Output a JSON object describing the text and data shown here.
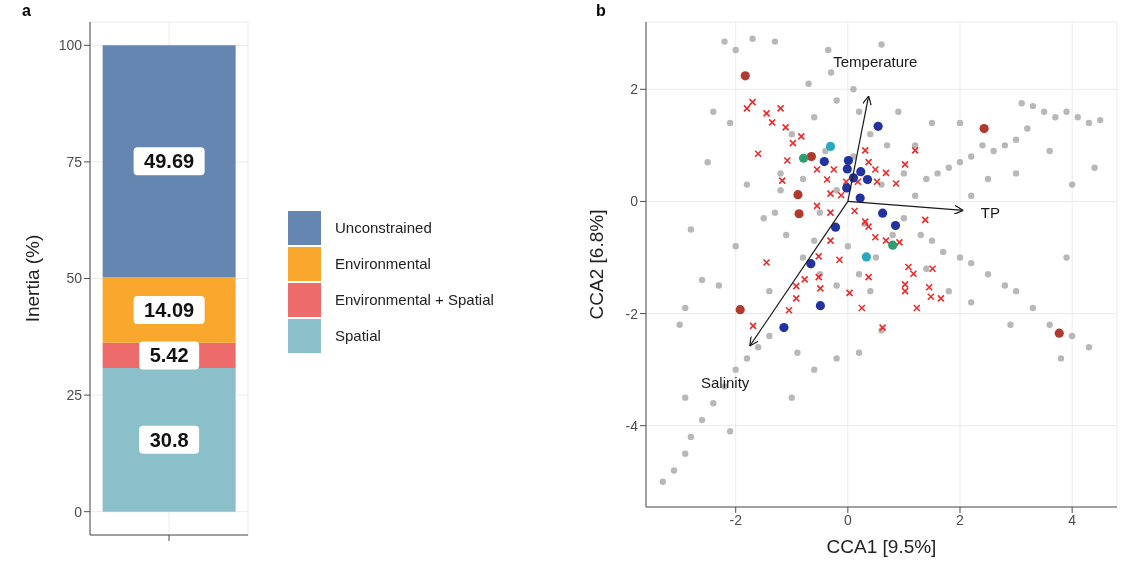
{
  "chart_data": [
    {
      "type": "bar",
      "title": "a",
      "ylabel": "Inertia (%)",
      "categories": [
        null
      ],
      "stacked": true,
      "ylim": [
        -5,
        105
      ],
      "yticks": [
        0,
        25,
        50,
        75,
        100
      ],
      "grid": true,
      "legend": "right",
      "data_labels": true,
      "series": [
        {
          "name": "Spatial",
          "color": "#8bbfca",
          "values": [
            30.8
          ]
        },
        {
          "name": "Environmental + Spatial",
          "color": "#ee6b6b",
          "values": [
            5.42
          ]
        },
        {
          "name": "Environmental",
          "color": "#f9a72d",
          "values": [
            14.09
          ]
        },
        {
          "name": "Unconstrained",
          "color": "#6486b1",
          "values": [
            49.69
          ]
        }
      ]
    },
    {
      "type": "scatter",
      "title": "b",
      "xlabel": "CCA1   [9.5%]",
      "ylabel": "CCA2   [6.8%]",
      "xlim": [
        -3.6,
        4.8
      ],
      "ylim": [
        -5.45,
        3.2
      ],
      "xticks": [
        -2,
        0,
        2,
        4
      ],
      "yticks": [
        -4,
        -2,
        0,
        2
      ],
      "grid": true,
      "marker": "circle",
      "annotations": [
        "Temperature",
        "TP",
        "Salinity"
      ],
      "series": [
        {
          "color": "#b8b8b8",
          "x": [
            4.5,
            4.3,
            4.1,
            3.9,
            3.7,
            3.5,
            3.3,
            3.1,
            3.2,
            3.0,
            2.8,
            2.6,
            2.4,
            2.2,
            2.0,
            1.8,
            1.6,
            1.4,
            2.5,
            3.0,
            3.6,
            4.0,
            2.0,
            1.5,
            2.2,
            4.4,
            4.3,
            4.0,
            3.6,
            3.3,
            3.0,
            2.8,
            2.5,
            2.2,
            2.0,
            1.7,
            1.5,
            1.3,
            3.8,
            2.2,
            1.8,
            3.9,
            2.9,
            -3.3,
            -3.1,
            -2.9,
            -2.8,
            -2.6,
            -2.4,
            -2.2,
            -2.0,
            -1.8,
            -1.6,
            -1.4,
            -2.1,
            -1.0,
            -0.6,
            -0.2,
            0.2,
            0.6,
            -0.9,
            -2.9,
            -3.0,
            -2.2,
            -2.0,
            -1.7,
            -1.3,
            -0.35,
            0.6,
            -0.3,
            0.1,
            -2.4,
            -2.1,
            -2.5,
            -2.8,
            -2.6,
            -2.9,
            -2.3,
            -2.0,
            -1.8,
            -1.5,
            -1.2,
            -1.0,
            -0.6,
            -0.2,
            0.2,
            0.4,
            0.7,
            1.0,
            1.2,
            1.0,
            0.8,
            0.5,
            0.2,
            -0.2,
            -0.5,
            -0.8,
            -1.1,
            -1.3,
            -1.2,
            -0.8,
            -0.5,
            -0.2,
            0.3,
            0.6,
            -0.4,
            0.1,
            -0.6,
            0.0,
            0.4,
            -1.4,
            1.4,
            1.2,
            0.9,
            -0.7
          ],
          "values": [
            1.45,
            1.4,
            1.5,
            1.6,
            1.5,
            1.6,
            1.7,
            1.75,
            1.3,
            1.1,
            1.0,
            0.9,
            1.0,
            0.8,
            0.7,
            0.6,
            0.5,
            0.4,
            0.4,
            0.5,
            0.9,
            0.3,
            1.4,
            1.4,
            0.1,
            0.6,
            -2.6,
            -2.4,
            -2.2,
            -1.9,
            -1.6,
            -1.5,
            -1.3,
            -1.1,
            -1.0,
            -0.9,
            -0.7,
            -0.6,
            -2.8,
            -1.8,
            -1.6,
            -1.0,
            -2.2,
            -5.0,
            -4.8,
            -4.5,
            -4.2,
            -3.9,
            -3.6,
            -3.3,
            -3.0,
            -2.8,
            -2.6,
            -2.4,
            -4.1,
            -3.5,
            -3.0,
            -2.8,
            -2.7,
            -2.3,
            -2.7,
            -3.5,
            -2.2,
            2.85,
            2.7,
            2.9,
            2.85,
            2.7,
            2.8,
            2.3,
            2.0,
            1.6,
            1.4,
            0.7,
            -0.5,
            -1.4,
            -1.9,
            -1.5,
            -0.8,
            0.3,
            -0.3,
            0.5,
            1.2,
            1.5,
            1.8,
            1.6,
            1.2,
            1.0,
            0.5,
            0.1,
            -0.3,
            -0.6,
            -1.0,
            -1.3,
            -1.5,
            -1.3,
            -1.0,
            -0.6,
            -0.2,
            0.2,
            0.4,
            -0.2,
            0.2,
            -0.4,
            0.3,
            0.9,
            0.8,
            -0.7,
            -0.8,
            -1.6,
            -1.6,
            -1.2,
            1.0,
            1.6,
            2.1
          ]
        },
        {
          "color": "#ee2a2a",
          "marker": "cross",
          "x": [
            -1.7,
            -1.8,
            -1.45,
            -1.35,
            -1.2,
            -1.11,
            -0.98,
            -0.83,
            -1.6,
            -1.08,
            -1.17,
            -0.55,
            -0.37,
            -0.25,
            -0.12,
            -0.31,
            -0.55,
            -0.31,
            0.31,
            0.37,
            0.49,
            0.68,
            0.86,
            0.12,
            0.31,
            0.37,
            0.49,
            0.68,
            0.92,
            1.02,
            1.2,
            1.38,
            -0.31,
            -0.52,
            -0.77,
            -0.92,
            -0.92,
            -1.05,
            -1.45,
            -1.69,
            -0.52,
            -0.49,
            -0.15,
            0.03,
            0.25,
            0.62,
            0.37,
            1.08,
            1.17,
            1.02,
            1.02,
            1.45,
            1.48,
            1.66,
            1.51,
            1.23,
            -0.03,
            0.18,
            0.52
          ],
          "values": [
            1.77,
            1.66,
            1.57,
            1.41,
            1.66,
            1.32,
            1.04,
            1.16,
            0.85,
            0.73,
            0.37,
            0.57,
            0.39,
            0.57,
            0.11,
            0.14,
            -0.08,
            -0.2,
            0.91,
            0.7,
            0.57,
            0.51,
            0.32,
            -0.17,
            -0.36,
            -0.45,
            -0.64,
            -0.7,
            -0.73,
            0.66,
            0.91,
            -0.33,
            -0.7,
            -0.98,
            -1.39,
            -1.51,
            -1.73,
            -1.94,
            -1.09,
            -2.22,
            -1.35,
            -1.55,
            -1.04,
            -1.63,
            -1.9,
            -2.25,
            -1.35,
            -1.17,
            -1.29,
            -1.48,
            -1.6,
            -1.53,
            -1.7,
            -1.73,
            -1.2,
            -1.9,
            0.35,
            0.35,
            0.35
          ]
        },
        {
          "color": "#b03a2e",
          "x": [
            -1.83,
            2.43,
            -0.89,
            -0.87,
            -0.65,
            -1.92,
            3.77
          ],
          "values": [
            2.24,
            1.3,
            0.12,
            -0.22,
            0.8,
            -1.93,
            -2.35
          ]
        },
        {
          "color": "#2233a0",
          "x": [
            0.54,
            -0.42,
            0.01,
            -0.01,
            0.23,
            0.1,
            0.35,
            -0.02,
            0.22,
            0.62,
            0.85,
            -0.22,
            -0.66,
            -0.49,
            -1.14
          ],
          "values": [
            1.34,
            0.71,
            0.73,
            0.58,
            0.53,
            0.42,
            0.39,
            0.24,
            0.06,
            -0.21,
            -0.43,
            -0.46,
            -1.11,
            -1.86,
            -2.25
          ]
        },
        {
          "color": "#2e9e6e",
          "x": [
            -0.79,
            0.8
          ],
          "values": [
            0.77,
            -0.78
          ]
        },
        {
          "color": "#29a8c0",
          "x": [
            -0.31,
            0.33
          ],
          "values": [
            0.98,
            -0.99
          ]
        },
        {
          "type": "line",
          "color": "#1a1a1a",
          "marker": "none",
          "x": [
            0,
            0.37
          ],
          "values": [
            0,
            1.88
          ]
        },
        {
          "type": "line",
          "color": "#1a1a1a",
          "marker": "none",
          "x": [
            0,
            2.06
          ],
          "values": [
            0,
            -0.16
          ]
        },
        {
          "type": "line",
          "color": "#1a1a1a",
          "marker": "none",
          "x": [
            0,
            -1.75
          ],
          "values": [
            0,
            -2.58
          ]
        }
      ]
    }
  ]
}
